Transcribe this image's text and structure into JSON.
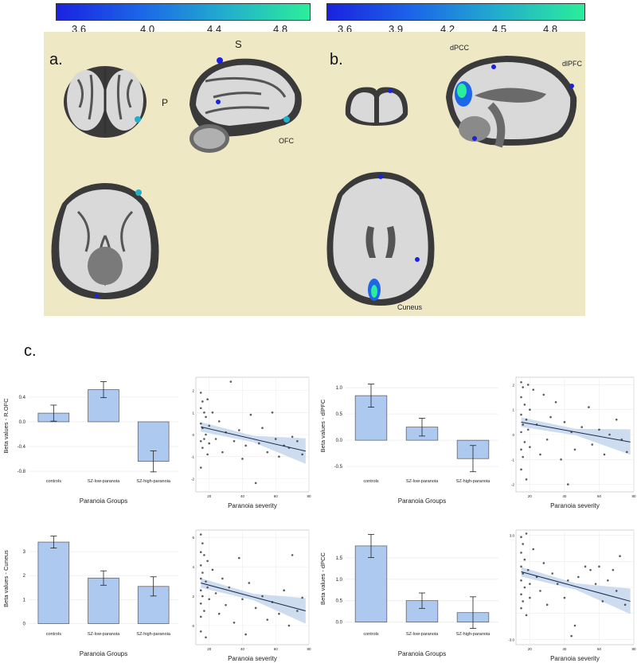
{
  "colorbars": [
    {
      "ticks": [
        "3.6",
        "4.0",
        "4.4",
        "4.8"
      ]
    },
    {
      "ticks": [
        "3.6",
        "3.9",
        "4.2",
        "4.5",
        "4.8"
      ]
    }
  ],
  "panel_labels": {
    "a": "a.",
    "b": "b.",
    "c": "c."
  },
  "anatomy": {
    "s": "S",
    "p": "P",
    "ofc": "OFC",
    "dpcc": "dPCC",
    "dlpfc": "dlPFC",
    "cuneus": "Cuneus"
  },
  "colors": {
    "bar_fill": "#aec9ef",
    "bar_stroke": "#555555",
    "ci_band": "#c5d6ec",
    "point": "#333333",
    "background_panel": "#eee8c4",
    "cbar_start": "#1a22e0",
    "cbar_end": "#2aee9a"
  },
  "chart_data": [
    {
      "type": "bar",
      "categories": [
        "controls",
        "SZ-low-paranoia",
        "SZ-high-paranoia"
      ],
      "values": [
        0.14,
        0.52,
        -0.64
      ],
      "errors": [
        0.13,
        0.13,
        0.17
      ],
      "ylabel": "Beta values - R.OFC",
      "xlabel": "Paranoia Groups",
      "ylim": [
        -0.85,
        0.72
      ],
      "yticks": [
        "0.4",
        "0.0",
        "-0.4",
        "-0.8"
      ],
      "ytick_values": [
        0.4,
        0.0,
        -0.4,
        -0.8
      ]
    },
    {
      "type": "scatter",
      "xlabel": "Paranoia severity",
      "xlim": [
        12,
        80
      ],
      "ylim": [
        -2.6,
        2.6
      ],
      "xticks": [
        "20",
        "40",
        "60",
        "80"
      ],
      "xtick_values": [
        20,
        40,
        60,
        80
      ],
      "yticks": [
        "2",
        "1",
        "0",
        "-1",
        "-2"
      ],
      "ytick_values": [
        2,
        1,
        0,
        -1,
        -2
      ],
      "fit": {
        "x": [
          15,
          78
        ],
        "y": [
          0.35,
          -0.75
        ]
      },
      "points": [
        [
          15,
          1.9
        ],
        [
          15,
          1.2
        ],
        [
          15,
          0.5
        ],
        [
          15,
          -0.3
        ],
        [
          15,
          -1.5
        ],
        [
          16,
          1.5
        ],
        [
          16,
          0.3
        ],
        [
          16,
          -0.6
        ],
        [
          17,
          1.0
        ],
        [
          17,
          -0.2
        ],
        [
          18,
          0.8
        ],
        [
          18,
          0.0
        ],
        [
          19,
          1.6
        ],
        [
          19,
          -0.9
        ],
        [
          20,
          0.4
        ],
        [
          20,
          -0.4
        ],
        [
          22,
          1.0
        ],
        [
          24,
          -0.2
        ],
        [
          26,
          0.6
        ],
        [
          28,
          -0.8
        ],
        [
          30,
          0.1
        ],
        [
          33,
          2.4
        ],
        [
          35,
          -0.3
        ],
        [
          38,
          0.2
        ],
        [
          40,
          -1.1
        ],
        [
          42,
          -0.5
        ],
        [
          45,
          0.9
        ],
        [
          48,
          -2.2
        ],
        [
          50,
          -0.4
        ],
        [
          52,
          0.3
        ],
        [
          55,
          -0.8
        ],
        [
          58,
          1.0
        ],
        [
          60,
          -0.2
        ],
        [
          62,
          -1.0
        ],
        [
          65,
          -0.5
        ],
        [
          68,
          -0.6
        ],
        [
          70,
          -0.1
        ],
        [
          73,
          -0.3
        ],
        [
          76,
          -0.9
        ]
      ]
    },
    {
      "type": "bar",
      "categories": [
        "controls",
        "SZ-low-paranoia",
        "SZ-high-paranoia"
      ],
      "values": [
        0.85,
        0.25,
        -0.35
      ],
      "errors": [
        0.22,
        0.17,
        0.25
      ],
      "ylabel": "Beta values - dlPFC",
      "xlabel": "Paranoia Groups",
      "ylim": [
        -0.65,
        1.2
      ],
      "yticks": [
        "1.0",
        "0.5",
        "0.0",
        "-0.5"
      ],
      "ytick_values": [
        1.0,
        0.5,
        0.0,
        -0.5
      ]
    },
    {
      "type": "scatter",
      "xlabel": "Paranoia severity",
      "xlim": [
        12,
        80
      ],
      "ylim": [
        -2.3,
        2.3
      ],
      "xticks": [
        "20",
        "40",
        "60",
        "80"
      ],
      "xtick_values": [
        20,
        40,
        60,
        80
      ],
      "yticks": [
        "2",
        "1",
        "0",
        "-1",
        "-2"
      ],
      "ytick_values": [
        2,
        1,
        0,
        -1,
        -2
      ],
      "fit": {
        "x": [
          15,
          78
        ],
        "y": [
          0.5,
          -0.3
        ]
      },
      "points": [
        [
          15,
          2.1
        ],
        [
          15,
          1.5
        ],
        [
          15,
          0.8
        ],
        [
          15,
          0.1
        ],
        [
          15,
          -0.6
        ],
        [
          15,
          -1.4
        ],
        [
          16,
          1.9
        ],
        [
          16,
          0.4
        ],
        [
          16,
          -0.9
        ],
        [
          17,
          1.2
        ],
        [
          17,
          -0.3
        ],
        [
          18,
          0.6
        ],
        [
          18,
          -1.8
        ],
        [
          19,
          2.0
        ],
        [
          19,
          0.2
        ],
        [
          20,
          1.0
        ],
        [
          20,
          -0.5
        ],
        [
          22,
          1.8
        ],
        [
          24,
          0.4
        ],
        [
          26,
          -0.8
        ],
        [
          28,
          1.6
        ],
        [
          30,
          -0.2
        ],
        [
          32,
          0.7
        ],
        [
          35,
          1.3
        ],
        [
          38,
          -1.0
        ],
        [
          40,
          0.5
        ],
        [
          42,
          -2.0
        ],
        [
          44,
          0.1
        ],
        [
          46,
          -0.6
        ],
        [
          50,
          0.3
        ],
        [
          54,
          1.1
        ],
        [
          56,
          -0.4
        ],
        [
          60,
          0.2
        ],
        [
          63,
          -0.8
        ],
        [
          66,
          0.0
        ],
        [
          70,
          0.6
        ],
        [
          73,
          -0.2
        ],
        [
          76,
          -0.7
        ]
      ]
    },
    {
      "type": "bar",
      "categories": [
        "controls",
        "SZ-low-paranoia",
        "SZ-high-paranoia"
      ],
      "values": [
        3.4,
        1.9,
        1.55
      ],
      "errors": [
        0.25,
        0.3,
        0.4
      ],
      "ylabel": "Beta values - Cuneus",
      "xlabel": "Paranoia Groups",
      "ylim": [
        -0.15,
        3.9
      ],
      "yticks": [
        "3",
        "2",
        "1",
        "0"
      ],
      "ytick_values": [
        3,
        2,
        1,
        0
      ]
    },
    {
      "type": "scatter",
      "xlabel": "Paranoia severity",
      "xlim": [
        12,
        80
      ],
      "ylim": [
        -1.3,
        6.5
      ],
      "xticks": [
        "20",
        "40",
        "60",
        "80"
      ],
      "xtick_values": [
        20,
        40,
        60,
        80
      ],
      "yticks": [
        "6",
        "4",
        "2",
        "0"
      ],
      "ytick_values": [
        6,
        4,
        2,
        0
      ],
      "fit": {
        "x": [
          15,
          78
        ],
        "y": [
          2.9,
          1.0
        ]
      },
      "points": [
        [
          15,
          6.2
        ],
        [
          15,
          5.0
        ],
        [
          15,
          4.1
        ],
        [
          15,
          3.2
        ],
        [
          15,
          2.4
        ],
        [
          15,
          1.5
        ],
        [
          15,
          0.6
        ],
        [
          15,
          -0.4
        ],
        [
          16,
          5.6
        ],
        [
          16,
          3.6
        ],
        [
          16,
          2.0
        ],
        [
          17,
          4.8
        ],
        [
          17,
          1.0
        ],
        [
          18,
          3.0
        ],
        [
          18,
          -0.8
        ],
        [
          19,
          4.4
        ],
        [
          19,
          2.6
        ],
        [
          20,
          1.8
        ],
        [
          22,
          3.8
        ],
        [
          24,
          2.2
        ],
        [
          26,
          0.8
        ],
        [
          28,
          3.2
        ],
        [
          30,
          1.4
        ],
        [
          32,
          2.6
        ],
        [
          35,
          0.2
        ],
        [
          38,
          4.6
        ],
        [
          40,
          1.8
        ],
        [
          42,
          -0.6
        ],
        [
          44,
          2.9
        ],
        [
          48,
          1.2
        ],
        [
          52,
          2.0
        ],
        [
          55,
          0.4
        ],
        [
          58,
          1.6
        ],
        [
          62,
          0.8
        ],
        [
          65,
          2.4
        ],
        [
          68,
          0.0
        ],
        [
          70,
          4.8
        ],
        [
          73,
          1.0
        ],
        [
          76,
          1.9
        ]
      ]
    },
    {
      "type": "bar",
      "categories": [
        "controls",
        "SZ-low-paranoia",
        "SZ-high-paranoia"
      ],
      "values": [
        1.78,
        0.5,
        0.22
      ],
      "errors": [
        0.27,
        0.18,
        0.37
      ],
      "ylabel": "Beta values - dPCC",
      "xlabel": "Paranoia Groups",
      "ylim": [
        -0.12,
        2.15
      ],
      "yticks": [
        "1.5",
        "1.0",
        "0.5",
        "0.0"
      ],
      "ytick_values": [
        1.5,
        1.0,
        0.5,
        0.0
      ]
    },
    {
      "type": "scatter",
      "xlabel": "Paranoia severity",
      "xlim": [
        12,
        80
      ],
      "ylim": [
        -3.3,
        3.3
      ],
      "xticks": [
        "20",
        "40",
        "60",
        "80"
      ],
      "xtick_values": [
        20,
        40,
        60,
        80
      ],
      "yticks": [
        "3.0",
        "",
        "",
        "",
        "-3.0"
      ],
      "ytick_values": [
        3,
        1.5,
        0,
        -1.5,
        -3
      ],
      "fit": {
        "x": [
          15,
          78
        ],
        "y": [
          0.9,
          -0.8
        ]
      },
      "points": [
        [
          15,
          2.9
        ],
        [
          15,
          2.0
        ],
        [
          15,
          1.2
        ],
        [
          15,
          0.4
        ],
        [
          15,
          -0.4
        ],
        [
          15,
          -1.2
        ],
        [
          16,
          2.5
        ],
        [
          16,
          0.8
        ],
        [
          16,
          -0.8
        ],
        [
          17,
          1.6
        ],
        [
          17,
          0.0
        ],
        [
          18,
          3.1
        ],
        [
          18,
          -1.6
        ],
        [
          19,
          1.0
        ],
        [
          20,
          0.2
        ],
        [
          20,
          -0.6
        ],
        [
          22,
          2.2
        ],
        [
          24,
          0.6
        ],
        [
          26,
          -0.2
        ],
        [
          28,
          1.4
        ],
        [
          30,
          -1.0
        ],
        [
          33,
          0.8
        ],
        [
          36,
          0.2
        ],
        [
          40,
          -0.6
        ],
        [
          42,
          0.4
        ],
        [
          44,
          -2.8
        ],
        [
          46,
          -2.2
        ],
        [
          48,
          0.6
        ],
        [
          52,
          1.2
        ],
        [
          55,
          1.0
        ],
        [
          58,
          0.2
        ],
        [
          60,
          1.2
        ],
        [
          62,
          -0.8
        ],
        [
          65,
          0.4
        ],
        [
          68,
          1.0
        ],
        [
          70,
          -0.2
        ],
        [
          72,
          1.8
        ],
        [
          75,
          -1.0
        ]
      ]
    }
  ]
}
